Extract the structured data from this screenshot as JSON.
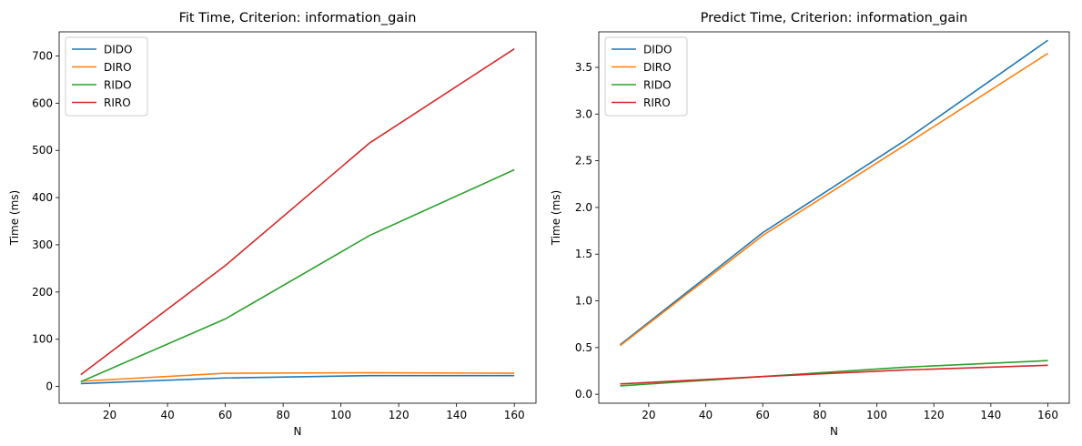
{
  "chart_data": [
    {
      "type": "line",
      "title": "Fit Time, Criterion: information_gain",
      "xlabel": "N",
      "ylabel": "Time (ms)",
      "x": [
        10,
        60,
        110,
        160
      ],
      "xlim": [
        2.5,
        167.5
      ],
      "ylim": [
        -35.5,
        751
      ],
      "xticks": [
        20,
        40,
        60,
        80,
        100,
        120,
        140,
        160
      ],
      "yticks": [
        0,
        100,
        200,
        300,
        400,
        500,
        600,
        700
      ],
      "grid": false,
      "legend_placement": "top-left",
      "series": [
        {
          "name": "DIDO",
          "color": "#1f77b4",
          "values": [
            6,
            18,
            23,
            23
          ]
        },
        {
          "name": "DIRO",
          "color": "#ff7f0e",
          "values": [
            11,
            28,
            29,
            28
          ]
        },
        {
          "name": "RIDO",
          "color": "#2ca02c",
          "values": [
            10,
            143,
            320,
            459
          ]
        },
        {
          "name": "RIRO",
          "color": "#d62728",
          "values": [
            25,
            256,
            516,
            715
          ]
        }
      ]
    },
    {
      "type": "line",
      "title": "Predict Time, Criterion: information_gain",
      "xlabel": "N",
      "ylabel": "Time (ms)",
      "x": [
        10,
        60,
        110,
        160
      ],
      "xlim": [
        2.5,
        167.5
      ],
      "ylim": [
        -0.096,
        3.88
      ],
      "xticks": [
        20,
        40,
        60,
        80,
        100,
        120,
        140,
        160
      ],
      "yticks": [
        0.0,
        0.5,
        1.0,
        1.5,
        2.0,
        2.5,
        3.0,
        3.5
      ],
      "ytick_labels": [
        "0.0",
        "0.5",
        "1.0",
        "1.5",
        "2.0",
        "2.5",
        "3.0",
        "3.5"
      ],
      "grid": false,
      "legend_placement": "top-left",
      "series": [
        {
          "name": "DIDO",
          "color": "#1f77b4",
          "values": [
            0.53,
            1.73,
            2.72,
            3.79
          ]
        },
        {
          "name": "DIRO",
          "color": "#ff7f0e",
          "values": [
            0.52,
            1.7,
            2.67,
            3.65
          ]
        },
        {
          "name": "RIDO",
          "color": "#2ca02c",
          "values": [
            0.09,
            0.19,
            0.29,
            0.36
          ]
        },
        {
          "name": "RIRO",
          "color": "#d62728",
          "values": [
            0.11,
            0.19,
            0.26,
            0.31
          ]
        }
      ]
    }
  ]
}
